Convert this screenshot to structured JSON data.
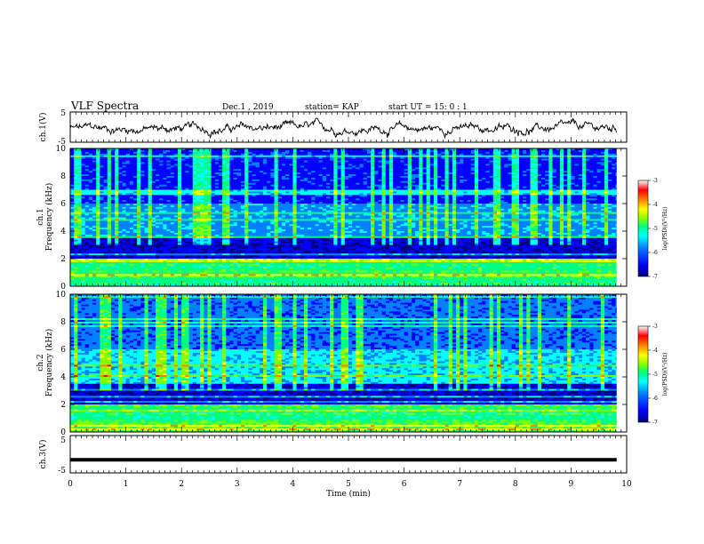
{
  "header": {
    "title": "VLF Spectra",
    "date": "Dec.1 , 2019",
    "station": "station= KAP",
    "start": "start  UT =   15: 0   : 1"
  },
  "colors": {
    "background": "#ffffff",
    "axis": "#000000",
    "colormap": [
      "#000080",
      "#0000ff",
      "#0080ff",
      "#00ffff",
      "#00ff80",
      "#80ff00",
      "#ffff00",
      "#ff8000",
      "#ff0000",
      "#ffffff"
    ]
  },
  "chart_data": [
    {
      "type": "line",
      "panel": "ch1-waveform",
      "ylabel": "ch.1(V)",
      "ylim": [
        -5,
        5
      ],
      "yticks": [
        "5",
        "-5"
      ],
      "xlim": [
        0,
        10
      ],
      "x_extent": [
        0,
        9.82
      ],
      "description_values": "noisy broadband waveform fluctuating roughly between -3 and +2 V"
    },
    {
      "type": "heatmap",
      "panel": "ch1-spectrogram",
      "ylabel": "ch.1\nFrequency (kHz)",
      "ylim": [
        0,
        10
      ],
      "yticks": [
        "0",
        "2",
        "4",
        "6",
        "8",
        "10"
      ],
      "xlim": [
        0,
        10
      ],
      "colorbar": {
        "label": "log(PSD)(V²/Hz)",
        "range": [
          -7,
          -3
        ],
        "ticks": [
          "-3",
          "-4",
          "-5",
          "-6",
          "-7"
        ]
      }
    },
    {
      "type": "heatmap",
      "panel": "ch2-spectrogram",
      "ylabel": "ch.2\nFrequency (kHz)",
      "ylim": [
        0,
        10
      ],
      "yticks": [
        "0",
        "2",
        "4",
        "6",
        "8",
        "10"
      ],
      "xlim": [
        0,
        10
      ],
      "colorbar": {
        "label": "log(PSD)(V²/Hz)",
        "range": [
          -7,
          -3
        ],
        "ticks": [
          "-3",
          "-4",
          "-5",
          "-6",
          "-7"
        ]
      }
    },
    {
      "type": "line",
      "panel": "ch3-waveform",
      "ylabel": "ch.3(V)",
      "ylim": [
        -5,
        5
      ],
      "yticks": [
        "5",
        "-5"
      ],
      "xlim": [
        0,
        10
      ],
      "x_extent": [
        0,
        9.82
      ],
      "values_constant": -1.5
    }
  ],
  "xaxis": {
    "label": "Time  (min)",
    "ticks": [
      "0",
      "1",
      "2",
      "3",
      "4",
      "5",
      "6",
      "7",
      "8",
      "9",
      "10"
    ]
  }
}
